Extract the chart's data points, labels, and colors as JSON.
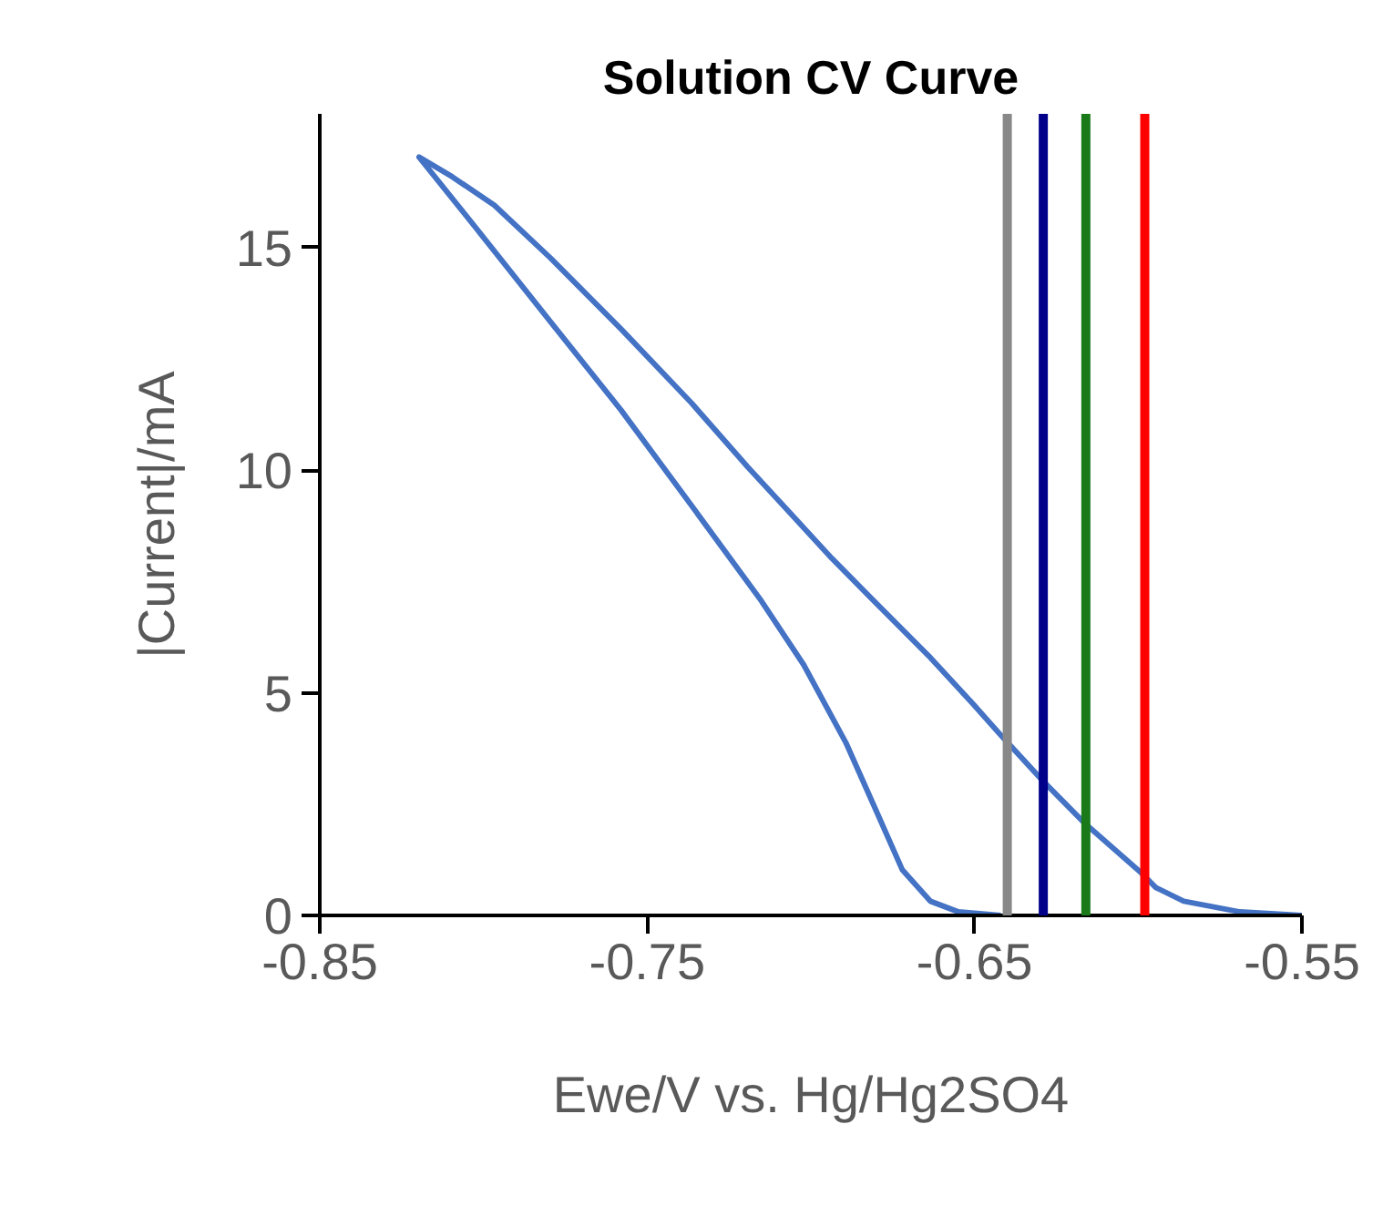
{
  "chart_data": {
    "type": "line",
    "title": "Solution CV Curve",
    "xlabel": "Ewe/V vs. Hg/Hg2SO4",
    "ylabel": "|Current|/mA",
    "xlim": [
      -0.85,
      -0.55
    ],
    "xticks": [
      -0.85,
      -0.75,
      -0.65,
      -0.55
    ],
    "ylim": [
      0,
      18
    ],
    "yticks": [
      0,
      5,
      10,
      15
    ],
    "grid": false,
    "marker": "none",
    "line_style": "solid",
    "series": [
      {
        "color": "#4472c4",
        "x": [
          -0.55,
          -0.5689,
          -0.5861,
          -0.5947,
          -0.599,
          -0.6162,
          -0.6291,
          -0.642,
          -0.6506,
          -0.6635,
          -0.6807,
          -0.6936,
          -0.7065,
          -0.7194,
          -0.7365,
          -0.758,
          -0.7795,
          -0.7967,
          -0.8096,
          -0.8197,
          -0.801,
          -0.7795,
          -0.758,
          -0.7365,
          -0.7151,
          -0.7022,
          -0.6893,
          -0.6807,
          -0.6721,
          -0.6635,
          -0.6549,
          -0.642
        ],
        "values": [
          0,
          0.08,
          0.32,
          0.63,
          0.95,
          2.06,
          3.02,
          4.05,
          4.76,
          5.79,
          7.06,
          8.02,
          9.05,
          10.08,
          11.51,
          13.17,
          14.76,
          15.95,
          16.59,
          17.03,
          15.32,
          13.33,
          11.35,
          9.21,
          7.06,
          5.63,
          3.88,
          2.46,
          1.03,
          0.32,
          0.08,
          0
        ]
      }
    ],
    "ref_lines": [
      {
        "axis": "x",
        "value": -0.64,
        "color": "#888888"
      },
      {
        "axis": "x",
        "value": -0.629,
        "color": "#00008b"
      },
      {
        "axis": "x",
        "value": -0.616,
        "color": "#1a7a1a"
      },
      {
        "axis": "x",
        "value": -0.598,
        "color": "#ff0000"
      }
    ]
  }
}
